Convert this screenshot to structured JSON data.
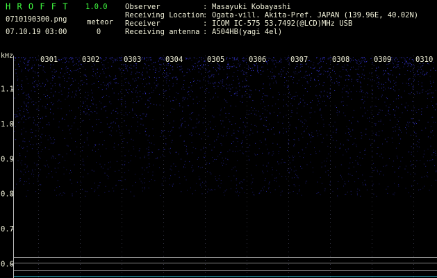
{
  "header": {
    "app_name": "H R O F F T",
    "version": "1.0.0",
    "file_name": "0710190300.png",
    "datetime": "07.10.19 03:00",
    "counter_label": "meteor",
    "counter_value": "0",
    "info": [
      {
        "label": "Observer",
        "value": "Masayuki Kobayashi"
      },
      {
        "label": "Receiving Location",
        "value": "Ogata-vill. Akita-Pref. JAPAN (139.96E, 40.02N)"
      },
      {
        "label": "Receiver",
        "value": "ICOM IC-575 53.7492(@LCD)MHz USB"
      },
      {
        "label": "Receiving antenna",
        "value": "A504HB(yagi 4el)"
      }
    ]
  },
  "plot": {
    "unit": "kHz",
    "freq_labels": [
      "1.1",
      "1.0",
      "0.9",
      "0.8",
      "0.7",
      "0.6"
    ],
    "time_labels": [
      "0301",
      "0302",
      "0303",
      "0304",
      "0305",
      "0306",
      "0307",
      "0308",
      "0309",
      "0310"
    ]
  }
}
